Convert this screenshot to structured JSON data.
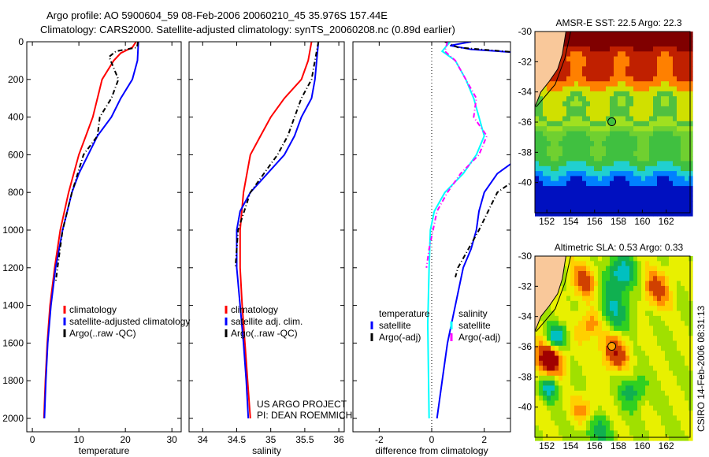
{
  "title_line1": "Argo profile: AO 5900604_59 08-Feb-2006 20060210_45 35.976S 157.44E",
  "title_line2": "Climatology: CARS2000. Satellite-adjusted climatology: synTS_20060208.nc (0.89d earlier)",
  "credit_line1": "US ARGO PROJECT",
  "credit_line2": "PI: DEAN ROEMMICH",
  "side_label": "CSIRO 14-Feb-2006 08:31:13",
  "colors": {
    "climatology": "#ff0000",
    "satellite": "#0000ff",
    "argo": "#000000",
    "sal_satellite": "#00ffff",
    "sal_argo": "#ff00ff",
    "land": "#f9c89a"
  },
  "chart_data": [
    {
      "type": "line",
      "id": "temperature",
      "xlabel": "temperature",
      "ylabel": "depth",
      "xlim": [
        -1.2,
        32
      ],
      "ylim": [
        2050,
        0
      ],
      "xticks": [
        0,
        10,
        20,
        30
      ],
      "yticks": [
        0,
        200,
        400,
        600,
        800,
        1000,
        1200,
        1400,
        1600,
        1800,
        2000
      ],
      "legend": [
        "climatology",
        "satellite-adjusted climatology",
        "Argo(..raw -QC)"
      ],
      "series": [
        {
          "name": "climatology",
          "color": "#ff0000",
          "style": "solid",
          "points": [
            [
              22.3,
              0
            ],
            [
              21.5,
              30
            ],
            [
              19,
              60
            ],
            [
              17.5,
              100
            ],
            [
              15,
              200
            ],
            [
              14,
              300
            ],
            [
              13,
              400
            ],
            [
              11.5,
              500
            ],
            [
              10,
              600
            ],
            [
              7.8,
              800
            ],
            [
              6,
              1000
            ],
            [
              4.8,
              1200
            ],
            [
              3.8,
              1400
            ],
            [
              3.2,
              1600
            ],
            [
              2.8,
              1800
            ],
            [
              2.5,
              2000
            ]
          ]
        },
        {
          "name": "satellite-adjusted climatology",
          "color": "#0000ff",
          "style": "solid",
          "points": [
            [
              22.8,
              0
            ],
            [
              22.6,
              100
            ],
            [
              21.5,
              200
            ],
            [
              19,
              300
            ],
            [
              17,
              400
            ],
            [
              14,
              500
            ],
            [
              12,
              600
            ],
            [
              10,
              700
            ],
            [
              8.5,
              800
            ],
            [
              6.5,
              1000
            ],
            [
              5,
              1200
            ],
            [
              4,
              1400
            ],
            [
              3.3,
              1600
            ],
            [
              2.9,
              1800
            ],
            [
              2.6,
              2000
            ]
          ]
        },
        {
          "name": "Argo(..raw -QC)",
          "color": "#000000",
          "style": "dash",
          "points": [
            [
              22.7,
              0
            ],
            [
              22.5,
              30
            ],
            [
              18,
              50
            ],
            [
              16.5,
              80
            ],
            [
              18.5,
              200
            ],
            [
              17,
              300
            ],
            [
              14.5,
              400
            ],
            [
              14,
              500
            ],
            [
              11,
              600
            ],
            [
              8.5,
              800
            ],
            [
              6.5,
              1000
            ],
            [
              5.4,
              1200
            ],
            [
              5,
              1280
            ]
          ]
        }
      ]
    },
    {
      "type": "line",
      "id": "salinity",
      "xlabel": "salinity",
      "ylabel": "depth",
      "xlim": [
        33.8,
        36.08
      ],
      "ylim": [
        2050,
        0
      ],
      "xticks": [
        34,
        34.5,
        35,
        35.5,
        36
      ],
      "yticks": [
        0,
        200,
        400,
        600,
        800,
        1000,
        1200,
        1400,
        1600,
        1800,
        2000
      ],
      "legend": [
        "climatology",
        "satellite adj. clim.",
        "Argo(..raw -QC)"
      ],
      "series": [
        {
          "name": "climatology",
          "color": "#ff0000",
          "style": "solid",
          "points": [
            [
              35.6,
              0
            ],
            [
              35.55,
              100
            ],
            [
              35.45,
              200
            ],
            [
              35.2,
              300
            ],
            [
              35.0,
              400
            ],
            [
              34.85,
              500
            ],
            [
              34.7,
              600
            ],
            [
              34.6,
              800
            ],
            [
              34.55,
              1000
            ],
            [
              34.55,
              1200
            ],
            [
              34.58,
              1400
            ],
            [
              34.62,
              1600
            ],
            [
              34.66,
              1800
            ],
            [
              34.7,
              2000
            ]
          ]
        },
        {
          "name": "satellite adj. clim.",
          "color": "#0000ff",
          "style": "solid",
          "points": [
            [
              35.7,
              0
            ],
            [
              35.65,
              200
            ],
            [
              35.6,
              300
            ],
            [
              35.45,
              400
            ],
            [
              35.35,
              500
            ],
            [
              35.2,
              600
            ],
            [
              34.95,
              700
            ],
            [
              34.7,
              800
            ],
            [
              34.55,
              900
            ],
            [
              34.5,
              1000
            ],
            [
              34.5,
              1200
            ],
            [
              34.55,
              1400
            ],
            [
              34.6,
              1600
            ],
            [
              34.64,
              1800
            ],
            [
              34.67,
              2000
            ]
          ]
        },
        {
          "name": "Argo(..raw -QC)",
          "color": "#000000",
          "style": "dash",
          "points": [
            [
              35.7,
              0
            ],
            [
              35.65,
              100
            ],
            [
              35.6,
              200
            ],
            [
              35.45,
              300
            ],
            [
              35.35,
              400
            ],
            [
              35.25,
              500
            ],
            [
              35.1,
              600
            ],
            [
              34.9,
              700
            ],
            [
              34.7,
              800
            ],
            [
              34.52,
              1000
            ],
            [
              34.48,
              1200
            ]
          ]
        }
      ]
    },
    {
      "type": "line",
      "id": "difference",
      "xlabel": "difference from climatology",
      "ylabel": "depth",
      "xlim": [
        -3,
        3
      ],
      "ylim": [
        2050,
        0
      ],
      "xticks": [
        -2,
        0,
        2
      ],
      "yticks": [
        0,
        200,
        400,
        600,
        800,
        1000,
        1200,
        1400,
        1600,
        1800,
        2000
      ],
      "legend_titles": [
        "temperature",
        "salinity"
      ],
      "legend": [
        "satellite",
        "Argo(-adj)",
        "satellite",
        "Argo(-adj)"
      ],
      "series": [
        {
          "name": "temperature satellite",
          "color": "#0000ff",
          "style": "solid",
          "points": [
            [
              1.5,
              0
            ],
            [
              0.7,
              20
            ],
            [
              1.5,
              40
            ],
            [
              3.5,
              60
            ],
            [
              4,
              300
            ],
            [
              3.5,
              600
            ],
            [
              3,
              650
            ],
            [
              2.5,
              700
            ],
            [
              2,
              800
            ],
            [
              1.8,
              900
            ],
            [
              1.7,
              1000
            ],
            [
              1.5,
              1100
            ],
            [
              1.2,
              1200
            ],
            [
              0.9,
              1400
            ],
            [
              0.6,
              1600
            ],
            [
              0.4,
              1800
            ],
            [
              0.2,
              2000
            ]
          ]
        },
        {
          "name": "temperature Argo(-adj)",
          "color": "#000000",
          "style": "dash",
          "points": [
            [
              0.5,
              0
            ],
            [
              1,
              30
            ],
            [
              3.5,
              60
            ],
            [
              4,
              200
            ],
            [
              3.5,
              700
            ],
            [
              2.5,
              800
            ],
            [
              1.8,
              1000
            ],
            [
              1.0,
              1200
            ],
            [
              0.9,
              1250
            ]
          ]
        },
        {
          "name": "salinity satellite",
          "color": "#00ffff",
          "style": "solid",
          "points": [
            [
              0.7,
              0
            ],
            [
              0.4,
              50
            ],
            [
              0.9,
              100
            ],
            [
              1.3,
              200
            ],
            [
              1.6,
              300
            ],
            [
              1.8,
              400
            ],
            [
              2.0,
              500
            ],
            [
              1.7,
              600
            ],
            [
              1.2,
              700
            ],
            [
              0.5,
              800
            ],
            [
              0.1,
              900
            ],
            [
              -0.05,
              1000
            ],
            [
              -0.1,
              1200
            ],
            [
              -0.15,
              1500
            ],
            [
              -0.1,
              2000
            ]
          ]
        },
        {
          "name": "salinity Argo(-adj)",
          "color": "#ff00ff",
          "style": "dash",
          "points": [
            [
              0.6,
              0
            ],
            [
              0.5,
              50
            ],
            [
              0.9,
              100
            ],
            [
              1.3,
              200
            ],
            [
              1.7,
              300
            ],
            [
              1.6,
              400
            ],
            [
              2.1,
              500
            ],
            [
              1.8,
              600
            ],
            [
              1.1,
              700
            ],
            [
              0.6,
              800
            ],
            [
              0.2,
              900
            ],
            [
              0.05,
              1000
            ],
            [
              -0.1,
              1100
            ],
            [
              -0.2,
              1200
            ]
          ]
        }
      ]
    },
    {
      "type": "heatmap",
      "id": "sst_map",
      "title": "AMSR-E SST: 22.5 Argo: 22.3",
      "xlim": [
        151,
        164
      ],
      "ylim": [
        -42,
        -30
      ],
      "xticks": [
        152,
        154,
        156,
        158,
        160,
        162
      ],
      "yticks": [
        -30,
        -32,
        -34,
        -36,
        -38,
        -40
      ],
      "argo_position": [
        157.44,
        -35.976
      ]
    },
    {
      "type": "heatmap",
      "id": "sla_map",
      "title": "Altimetric SLA: 0.53 Argo: 0.33",
      "xlim": [
        151,
        164
      ],
      "ylim": [
        -42,
        -30
      ],
      "xticks": [
        152,
        154,
        156,
        158,
        160,
        162
      ],
      "yticks": [
        -30,
        -32,
        -34,
        -36,
        -38,
        -40
      ],
      "argo_position": [
        157.44,
        -35.976
      ]
    }
  ]
}
